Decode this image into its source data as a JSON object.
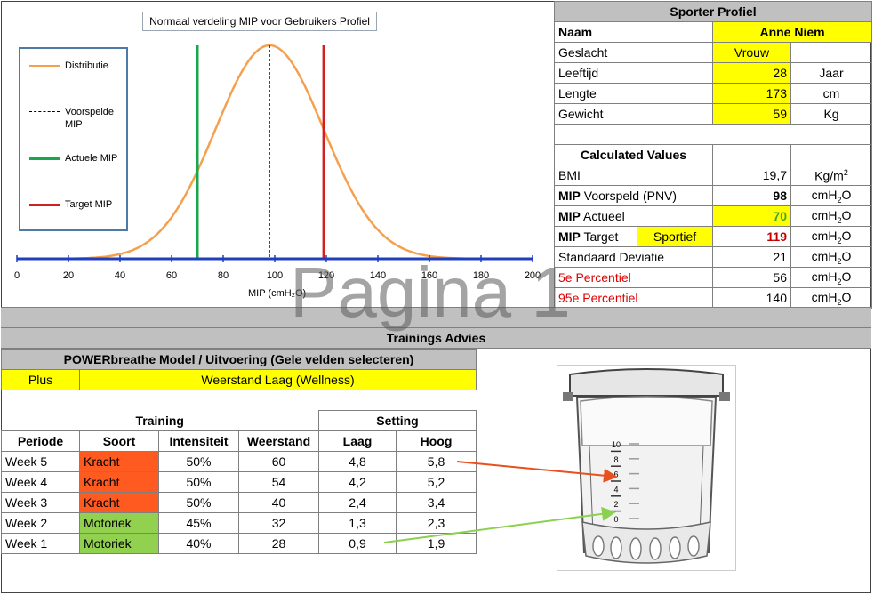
{
  "chart": {
    "title": "Normaal verdeling MIP voor Gebruikers Profiel",
    "xlabel": "MIP (cmH₂O)",
    "legend": [
      {
        "label": "Distributie",
        "color": "#f5a04e"
      },
      {
        "label": "Voorspelde MIP",
        "color": "#000000"
      },
      {
        "label": "Actuele MIP",
        "color": "#1aa64a"
      },
      {
        "label": "Target MIP",
        "color": "#d21f1f"
      }
    ]
  },
  "chart_data": {
    "type": "line",
    "title": "Normaal verdeling MIP voor Gebruikers Profiel",
    "xlabel": "MIP (cmH₂O)",
    "xlim": [
      0,
      200
    ],
    "x_ticks": [
      "0",
      "20",
      "40",
      "60",
      "80",
      "100",
      "120",
      "140",
      "160",
      "180",
      "200"
    ],
    "distribution": {
      "mean": 98,
      "sd": 21
    },
    "lines": {
      "voorspelde": 98,
      "actuele": 70,
      "target": 119
    }
  },
  "profile": {
    "header": "Sporter Profiel",
    "name_label": "Naam",
    "name_value": "Anne Niem",
    "rows": [
      {
        "label": "Geslacht",
        "value": "Vrouw",
        "unit": ""
      },
      {
        "label": "Leeftijd",
        "value": "28",
        "unit": "Jaar"
      },
      {
        "label": "Lengte",
        "value": "173",
        "unit": "cm"
      },
      {
        "label": "Gewicht",
        "value": "59",
        "unit": "Kg"
      }
    ],
    "calc_header": "Calculated Values",
    "bmi_label": "BMI",
    "bmi_value": "19,7",
    "bmi_unit": "Kg/m",
    "mip_prefix": "MIP",
    "voorspeld_label": "Voorspeld (PNV)",
    "voorspeld_value": "98",
    "actueel_label": "Actueel",
    "actueel_value": "70",
    "target_label": "Target",
    "target_mode": "Sportief",
    "target_value": "119",
    "sd_label": "Standaard Deviatie",
    "sd_value": "21",
    "p5_label": "5e Percentiel",
    "p5_value": "56",
    "p95_label": "95e Percentiel",
    "p95_value": "140",
    "unit_base": "cmH",
    "unit_sub": "2",
    "unit_tail": "O",
    "sq": "2"
  },
  "watermark": "Pagina 1",
  "advice": {
    "band_title": "Trainings Advies",
    "model_header": "POWERbreathe Model / Uitvoering (Gele velden selecteren)",
    "model_value": "Plus",
    "resistance_value": "Weerstand Laag (Wellness)",
    "training_label": "Training",
    "setting_label": "Setting",
    "columns": [
      "Periode",
      "Soort",
      "Intensiteit",
      "Weerstand",
      "Laag",
      "Hoog"
    ],
    "rows": [
      {
        "periode": "Week 5",
        "soort": "Kracht",
        "intensiteit": "50%",
        "weerstand": "60",
        "laag": "4,8",
        "hoog": "5,8",
        "kind": "kracht"
      },
      {
        "periode": "Week 4",
        "soort": "Kracht",
        "intensiteit": "50%",
        "weerstand": "54",
        "laag": "4,2",
        "hoog": "5,2",
        "kind": "kracht"
      },
      {
        "periode": "Week 3",
        "soort": "Kracht",
        "intensiteit": "50%",
        "weerstand": "40",
        "laag": "2,4",
        "hoog": "3,4",
        "kind": "kracht"
      },
      {
        "periode": "Week 2",
        "soort": "Motoriek",
        "intensiteit": "45%",
        "weerstand": "32",
        "laag": "1,3",
        "hoog": "2,3",
        "kind": "motoriek"
      },
      {
        "periode": "Week 1",
        "soort": "Motoriek",
        "intensiteit": "40%",
        "weerstand": "28",
        "laag": "0,9",
        "hoog": "1,9",
        "kind": "motoriek"
      }
    ]
  },
  "device": {
    "scale": [
      "10",
      "8",
      "6",
      "4",
      "2",
      "0"
    ]
  }
}
